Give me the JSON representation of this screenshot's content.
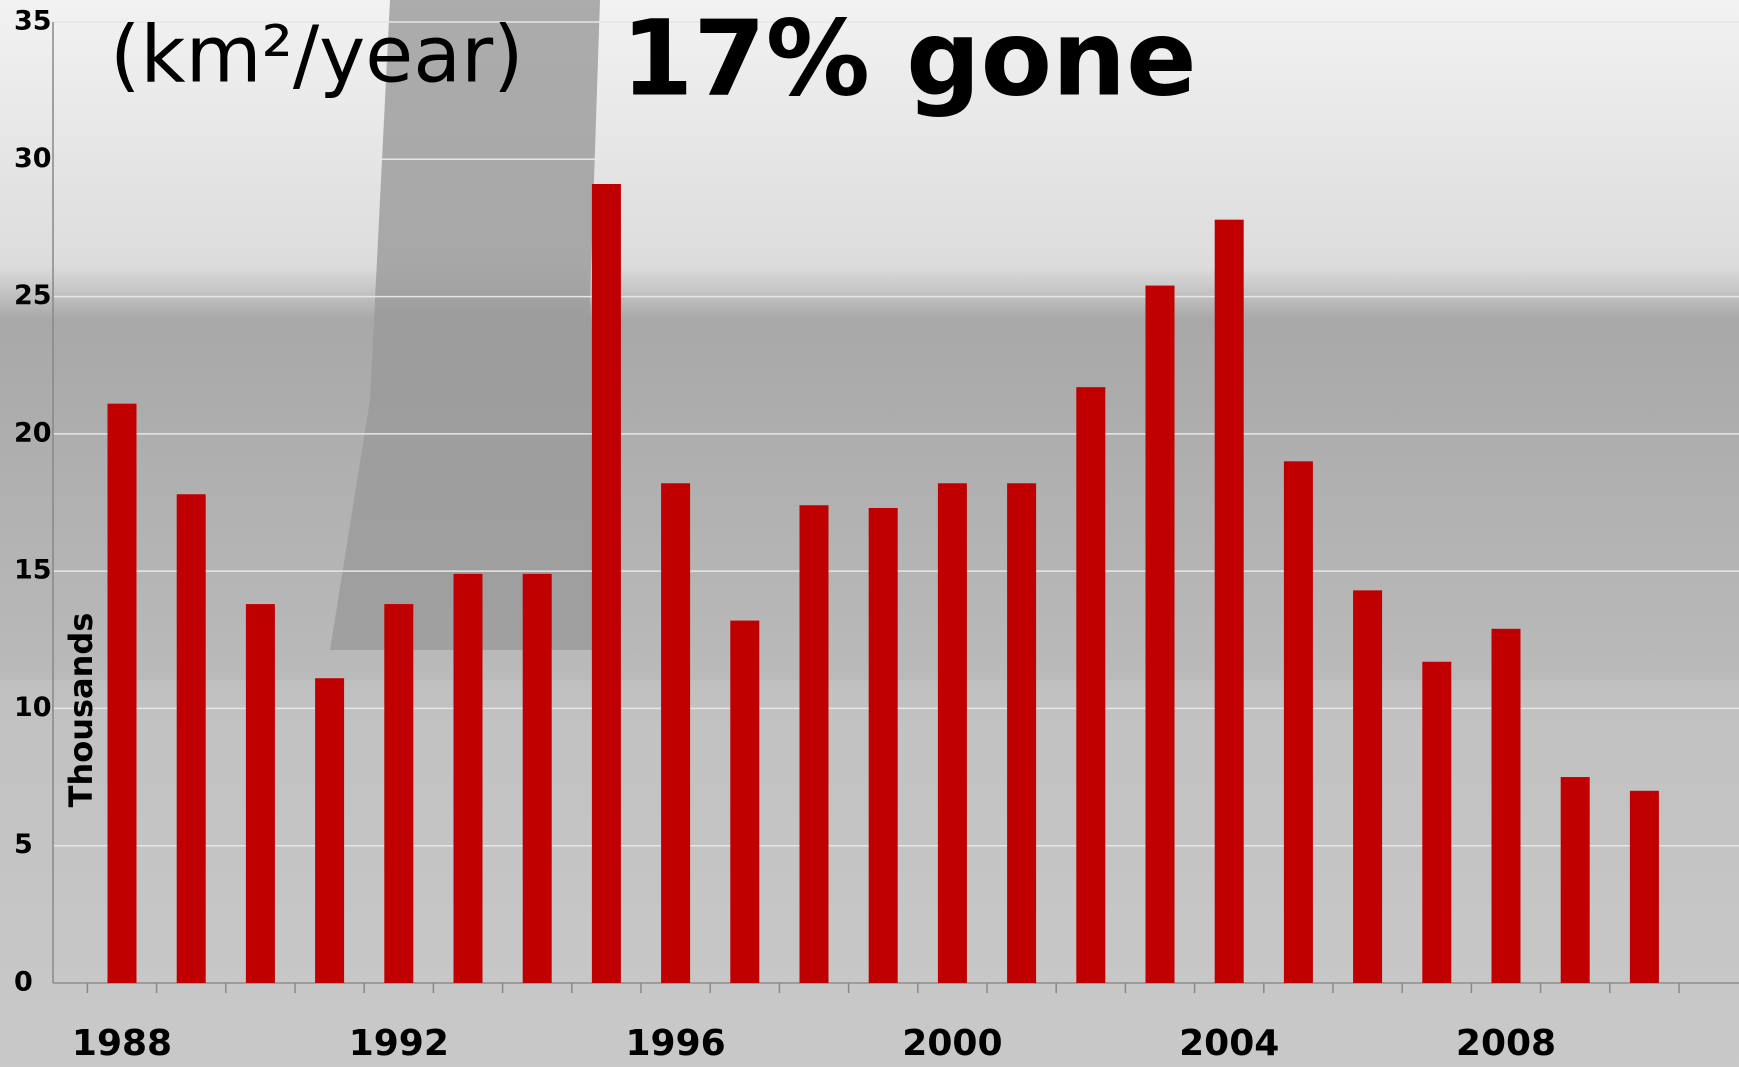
{
  "chart_data": {
    "type": "bar",
    "title": "(km²/year)",
    "annotation": "17% gone",
    "y_label": "Thousands",
    "categories": [
      "1988",
      null,
      null,
      null,
      "1992",
      null,
      null,
      null,
      "1996",
      null,
      null,
      null,
      "2000",
      null,
      null,
      null,
      "2004",
      null,
      null,
      null,
      "2008",
      null,
      null
    ],
    "values": [
      21.1,
      17.8,
      13.8,
      11.1,
      13.8,
      14.9,
      14.9,
      29.1,
      18.2,
      13.2,
      17.4,
      17.3,
      18.2,
      18.2,
      21.7,
      25.4,
      27.8,
      19.0,
      14.3,
      11.7,
      12.9,
      7.5,
      7.0
    ],
    "color": "#c00000",
    "ylim": [
      0,
      35
    ],
    "yticks": [
      0,
      5,
      10,
      15,
      20,
      25,
      30,
      35
    ],
    "grid": true
  }
}
